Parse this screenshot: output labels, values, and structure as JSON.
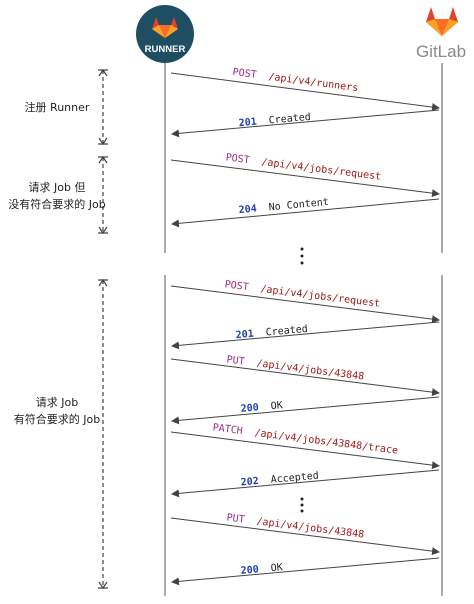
{
  "actors": {
    "runner": {
      "badge_text": "RUNNER",
      "badge_color": "#1f4e63",
      "logo_color": "#e2432a"
    },
    "gitlab": {
      "label": "GitLab",
      "logo_color": "#e2432a",
      "label_color": "#8a8a8a"
    }
  },
  "colors": {
    "verb": "#9b2b8a",
    "path": "#a01818",
    "status": "#1f40b0",
    "text": "#222222",
    "line": "#555555"
  },
  "phases": [
    {
      "label_lines": [
        "注册 Runner"
      ]
    },
    {
      "label_lines": [
        "请求 Job 但",
        "没有符合要求的 Job"
      ]
    },
    {
      "label_lines": [
        "请求 Job",
        "有符合要求的 Job"
      ]
    }
  ],
  "messages": [
    {
      "verb": "POST",
      "path": "/api/v4/runners"
    },
    {
      "code": "201",
      "text": "Created"
    },
    {
      "verb": "POST",
      "path": "/api/v4/jobs/request"
    },
    {
      "code": "204",
      "text": "No Content"
    },
    {
      "verb": "POST",
      "path": "/api/v4/jobs/request"
    },
    {
      "code": "201",
      "text": "Created"
    },
    {
      "verb": "PUT",
      "path": "/api/v4/jobs/43848"
    },
    {
      "code": "200",
      "text": "OK"
    },
    {
      "verb": "PATCH",
      "path": "/api/v4/jobs/43848/trace"
    },
    {
      "code": "202",
      "text": "Accepted"
    },
    {
      "verb": "PUT",
      "path": "/api/v4/jobs/43848"
    },
    {
      "code": "200",
      "text": "OK"
    }
  ]
}
